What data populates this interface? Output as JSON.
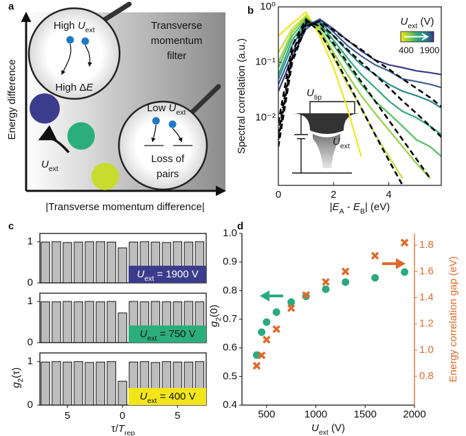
{
  "panel_labels": [
    "a",
    "b",
    "c",
    "d"
  ],
  "schematic": {
    "y_label": "Energy difference",
    "x_label": "|Transverse momentum difference|",
    "filter_label": [
      "Transverse",
      "momentum",
      "filter"
    ],
    "high_u": [
      "High ",
      "U",
      "ext"
    ],
    "high_de": [
      "High Δ",
      "E"
    ],
    "low_u": [
      "Low ",
      "U",
      "ext"
    ],
    "loss": [
      "Loss of",
      "pairs"
    ],
    "arrow_u": [
      "U",
      "ext"
    ]
  },
  "chart_data": [
    {
      "type": "line",
      "log_y": true,
      "ylabel": "Spectral correlation (a.u.)",
      "xlabel": [
        "|",
        "E",
        "A",
        " - ",
        "E",
        "B",
        "| (eV)"
      ],
      "x": [
        0,
        0.5,
        1,
        1.5,
        2,
        2.5,
        3,
        3.5,
        4,
        4.5,
        5,
        5.5,
        5.9
      ],
      "xlim": [
        0,
        5.9
      ],
      "xticks": [
        0,
        2,
        4
      ],
      "ylim": [
        0.0006,
        1
      ],
      "yticks": [
        {
          "value": 1,
          "label": "10⁰"
        },
        {
          "value": 0.1,
          "label": "10⁻¹"
        },
        {
          "value": 0.01,
          "label": "10⁻²"
        }
      ],
      "series": [
        {
          "color": "#f2e61a",
          "values": [
            0.3,
            0.5,
            0.8,
            0.3,
            0.08,
            0.015,
            0.002,
            null,
            null,
            null,
            null,
            null,
            null
          ]
        },
        {
          "color": "#c8dc30",
          "values": [
            0.15,
            0.4,
            0.7,
            0.35,
            0.12,
            0.04,
            0.015,
            0.005,
            0.002,
            0.0008,
            null,
            null,
            null
          ]
        },
        {
          "color": "#90d040",
          "values": [
            0.1,
            0.35,
            0.65,
            0.4,
            0.15,
            0.06,
            0.025,
            0.012,
            0.006,
            0.003,
            0.0015,
            0.0008,
            null
          ]
        },
        {
          "color": "#50c060",
          "values": [
            0.08,
            0.3,
            0.6,
            0.45,
            0.2,
            0.09,
            0.04,
            0.02,
            0.012,
            0.007,
            0.004,
            0.003,
            0.002
          ]
        },
        {
          "color": "#30a880",
          "values": [
            0.06,
            0.25,
            0.55,
            0.5,
            0.25,
            0.12,
            0.06,
            0.035,
            0.02,
            0.013,
            0.01,
            0.007,
            0.005
          ]
        },
        {
          "color": "#2a8a8a",
          "values": [
            0.05,
            0.2,
            0.5,
            0.55,
            0.3,
            0.16,
            0.09,
            0.06,
            0.04,
            0.03,
            0.025,
            0.02,
            0.015
          ]
        },
        {
          "color": "#3a6090",
          "values": [
            0.04,
            0.15,
            0.45,
            0.6,
            0.35,
            0.2,
            0.13,
            0.09,
            0.07,
            0.05,
            0.045,
            0.04,
            0.035
          ]
        },
        {
          "color": "#3a3a88",
          "values": [
            0.03,
            0.12,
            0.4,
            0.6,
            0.4,
            0.25,
            0.16,
            0.11,
            0.09,
            0.08,
            0.07,
            0.065,
            0.06
          ]
        },
        {
          "color": "#000000",
          "dash": true,
          "values": [
            0.008,
            0.2,
            0.6,
            0.35,
            0.13,
            0.045,
            0.015,
            0.005,
            0.0017,
            0.0006,
            null,
            null,
            null
          ]
        },
        {
          "color": "#000000",
          "dash": true,
          "values": [
            0.005,
            0.15,
            0.55,
            0.45,
            0.22,
            0.1,
            0.045,
            0.02,
            0.009,
            0.004,
            0.0018,
            0.0008,
            null
          ]
        },
        {
          "color": "#000000",
          "dash": true,
          "values": [
            0.004,
            0.12,
            0.5,
            0.5,
            0.3,
            0.17,
            0.1,
            0.06,
            0.035,
            0.02,
            0.012,
            0.007,
            0.0045
          ]
        },
        {
          "color": "#000000",
          "dash": true,
          "values": [
            0.003,
            0.1,
            0.45,
            0.55,
            0.38,
            0.25,
            0.17,
            0.11,
            0.075,
            0.05,
            0.034,
            0.023,
            0.016
          ]
        }
      ],
      "colorbar": {
        "label": [
          "U",
          "ext",
          " (V)"
        ],
        "ticks": [
          400,
          1900
        ],
        "colors": [
          "#f2e61a",
          "#90d040",
          "#30a880",
          "#2a8a8a",
          "#3a3a88"
        ]
      },
      "inset": {
        "tip": [
          "U",
          "tip"
        ],
        "ext": [
          "U",
          "ext"
        ]
      }
    },
    {
      "type": "bar",
      "x": [
        -7,
        -6,
        -5,
        -4,
        -3,
        -2,
        -1,
        0,
        1,
        2,
        3,
        4,
        5,
        6,
        7
      ],
      "values": [
        0.99,
        1.0,
        0.98,
        0.99,
        1.0,
        1.0,
        0.99,
        0.85,
        0.99,
        1.0,
        0.99,
        0.98,
        1.0,
        0.99,
        1.0
      ],
      "xlim": [
        -7.5,
        7.6
      ],
      "ylim": [
        0,
        1.2
      ],
      "yticks": [
        0,
        1
      ],
      "color": "#bdbdbd",
      "annotation": [
        "U",
        "ext",
        " = 1900 V"
      ],
      "annotation_color": "#3b3d8c",
      "annotation_text_color": "#ffffff"
    },
    {
      "type": "bar",
      "x": [
        -7,
        -6,
        -5,
        -4,
        -3,
        -2,
        -1,
        0,
        1,
        2,
        3,
        4,
        5,
        6,
        7
      ],
      "values": [
        0.99,
        0.99,
        1.0,
        0.99,
        1.0,
        0.99,
        1.0,
        0.72,
        1.0,
        0.99,
        1.0,
        0.99,
        0.99,
        1.0,
        0.99
      ],
      "xlim": [
        -7.5,
        7.6
      ],
      "ylim": [
        0,
        1.2
      ],
      "yticks": [
        0,
        1
      ],
      "color": "#bdbdbd",
      "annotation": [
        "U",
        "ext",
        " = 750 V"
      ],
      "annotation_color": "#2bae7c",
      "annotation_text_color": "#111111"
    },
    {
      "type": "bar",
      "x": [
        -7,
        -6,
        -5,
        -4,
        -3,
        -2,
        -1,
        0,
        1,
        2,
        3,
        4,
        5,
        6,
        7
      ],
      "values": [
        0.99,
        1.0,
        0.99,
        1.0,
        0.98,
        0.99,
        1.0,
        0.55,
        0.99,
        1.0,
        0.98,
        1.0,
        0.99,
        0.99,
        1.0
      ],
      "xlim": [
        -7.5,
        7.6
      ],
      "ylim": [
        0,
        1.2
      ],
      "yticks": [
        0,
        1
      ],
      "color": "#bdbdbd",
      "xticks": [
        {
          "value": -5,
          "label": "5"
        },
        0,
        5
      ],
      "xlabel": [
        "τ/",
        "T",
        "rep"
      ],
      "ylabel": [
        "g",
        "2",
        "(τ)"
      ],
      "annotation": [
        "U",
        "ext",
        " = 400 V"
      ],
      "annotation_color": "#f2e61a",
      "annotation_text_color": "#111111"
    },
    {
      "type": "scatter",
      "x": [
        400,
        450,
        500,
        600,
        750,
        900,
        1100,
        1300,
        1600,
        1900
      ],
      "xlim": [
        250,
        2000
      ],
      "xticks": [
        500,
        1000,
        1500,
        2000
      ],
      "ylim": [
        0.4,
        1.0
      ],
      "yticks": [
        0.4,
        0.5,
        0.6,
        0.7,
        0.8,
        0.9,
        {
          "value": 1.0,
          "label": "1.0"
        }
      ],
      "y2lim": [
        0.58,
        1.89
      ],
      "y2ticks": [
        0.8,
        {
          "value": 1.0,
          "label": "1.0"
        },
        1.2,
        1.4,
        1.6,
        1.8
      ],
      "xlabel": [
        "U",
        "ext",
        " (V)"
      ],
      "ylabel": [
        "g",
        "2",
        "(0)"
      ],
      "y2label": "Energy correlation gap (eV)",
      "y2_color": "#e0692a",
      "series": [
        {
          "color": "#2aaa80",
          "marker": "circle",
          "values": [
            0.575,
            0.655,
            0.69,
            0.725,
            0.76,
            0.78,
            0.805,
            0.83,
            0.845,
            0.865
          ]
        },
        {
          "color": "#e0692a",
          "marker": "x",
          "axis": "y2",
          "values": [
            0.88,
            0.96,
            1.08,
            1.16,
            1.32,
            1.42,
            1.52,
            1.6,
            1.72,
            1.82
          ]
        }
      ]
    }
  ]
}
